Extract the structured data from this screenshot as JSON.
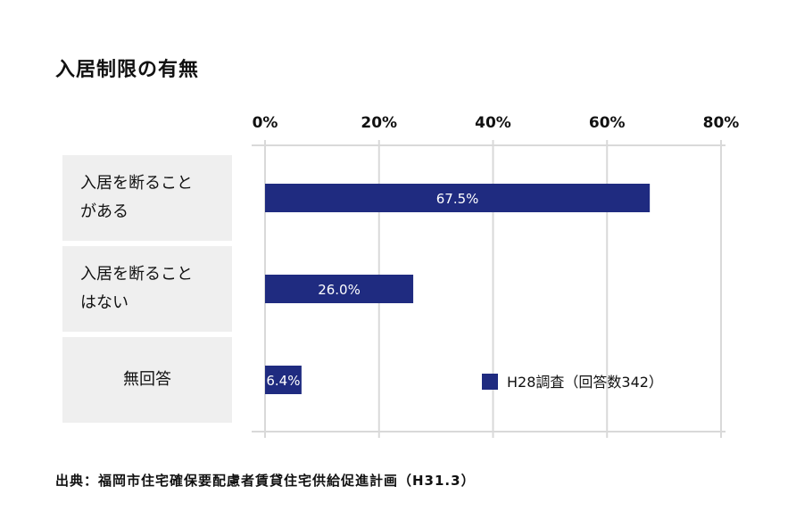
{
  "chart_data": {
    "type": "bar",
    "orientation": "horizontal",
    "title": "入居制限の有無",
    "categories": [
      "入居を断ることがある",
      "入居を断ることはない",
      "無回答"
    ],
    "category_lines": [
      [
        "入居を断ること",
        "がある"
      ],
      [
        "入居を断ること",
        "はない"
      ],
      [
        "無回答"
      ]
    ],
    "series": [
      {
        "name": "H28調査（回答数342）",
        "values": [
          67.5,
          26.0,
          6.4
        ],
        "color": "#1f2b80"
      }
    ],
    "data_labels": [
      "67.5%",
      "26.0%",
      "6.4%"
    ],
    "xlim": [
      0,
      80
    ],
    "xticks": [
      0,
      20,
      40,
      60,
      80
    ],
    "xtick_labels": [
      "0%",
      "20%",
      "40%",
      "60%",
      "80%"
    ],
    "xaxis_position": "top",
    "grid": true,
    "legend_position": "bottom-right",
    "source": "出典：福岡市住宅確保要配慮者賃貸住宅供給促進計画（H31.3）"
  }
}
